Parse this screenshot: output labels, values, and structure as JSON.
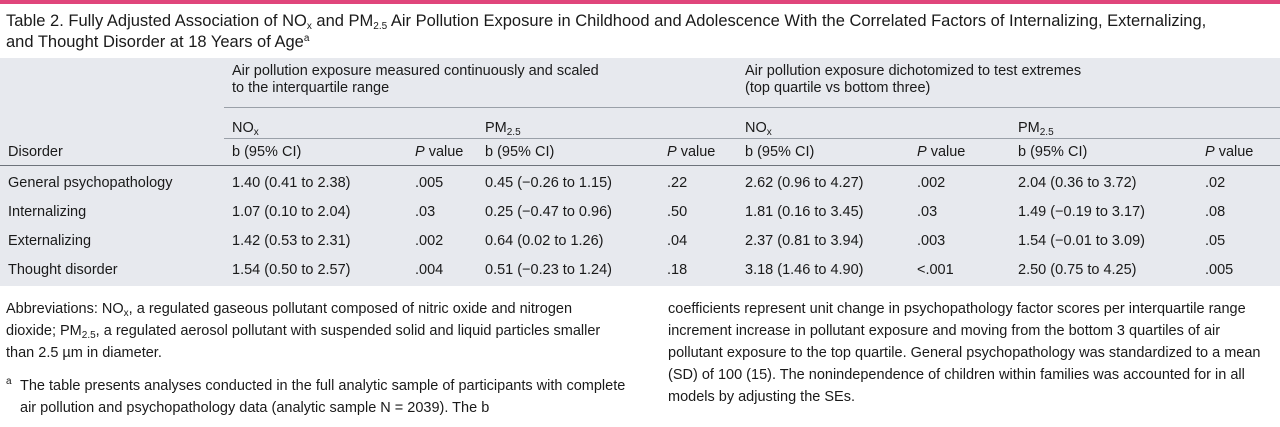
{
  "table": {
    "title_a": "Table 2. Fully Adjusted Association of NO",
    "title_sub_x": "x",
    "title_b": " and PM",
    "title_sub_25": "2.5",
    "title_c": " Air Pollution Exposure in Childhood and Adolescence With the Correlated Factors of Internalizing, Externalizing,",
    "title_d": "and Thought Disorder at 18 Years of Age",
    "title_sup": "a",
    "group_continuous_line1": "Air pollution exposure measured continuously and scaled",
    "group_continuous_line2": "to the interquartile range",
    "group_dichotomized_line1": "Air pollution exposure dichotomized to test extremes",
    "group_dichotomized_line2": "(top quartile vs bottom three)",
    "pollutant_no": "NO",
    "pollutant_no_sub": "x",
    "pollutant_pm": "PM",
    "pollutant_pm_sub": "2.5",
    "col_disorder": "Disorder",
    "col_b": "b (95% CI)",
    "col_p_italic": "P",
    "col_p_rest": " value",
    "rows": [
      {
        "disorder": "General psychopathology",
        "no_b": "1.40 (0.41 to 2.38)",
        "no_p": ".005",
        "pm_b": "0.45 (−0.26 to 1.15)",
        "pm_p": ".22",
        "dno_b": "2.62 (0.96 to 4.27)",
        "dno_p": ".002",
        "dpm_b": "2.04 (0.36 to 3.72)",
        "dpm_p": ".02"
      },
      {
        "disorder": "Internalizing",
        "no_b": "1.07 (0.10 to 2.04)",
        "no_p": ".03",
        "pm_b": "0.25 (−0.47 to 0.96)",
        "pm_p": ".50",
        "dno_b": "1.81 (0.16 to 3.45)",
        "dno_p": ".03",
        "dpm_b": "1.49 (−0.19 to 3.17)",
        "dpm_p": ".08"
      },
      {
        "disorder": "Externalizing",
        "no_b": "1.42 (0.53 to 2.31)",
        "no_p": ".002",
        "pm_b": "0.64 (0.02 to 1.26)",
        "pm_p": ".04",
        "dno_b": "2.37 (0.81 to 3.94)",
        "dno_p": ".003",
        "dpm_b": "1.54 (−0.01 to 3.09)",
        "dpm_p": ".05"
      },
      {
        "disorder": "Thought disorder",
        "no_b": "1.54 (0.50 to 2.57)",
        "no_p": ".004",
        "pm_b": "0.51 (−0.23 to 1.24)",
        "pm_p": ".18",
        "dno_b": "3.18 (1.46 to 4.90)",
        "dno_p": "<.001",
        "dpm_b": "2.50 (0.75 to 4.25)",
        "dpm_p": ".005"
      }
    ]
  },
  "notes": {
    "abbr_a": "Abbreviations: NO",
    "abbr_sub_x": "x",
    "abbr_b": ", a regulated gaseous pollutant composed of nitric oxide and nitrogen dioxide; PM",
    "abbr_sub_25": "2.5",
    "abbr_c": ", a regulated aerosol pollutant with suspended solid and liquid particles smaller than 2.5 µm in diameter.",
    "footnote_mark": "a",
    "footnote_text_col1": "The table presents analyses conducted in the full analytic sample of participants with complete air pollution and psychopathology data (analytic sample N = 2039). The b",
    "footnote_text_col2": "coefficients represent unit change in psychopathology factor scores per interquartile range increment increase in pollutant exposure and moving from the bottom 3 quartiles of air pollutant exposure to the top quartile. General psychopathology was standardized to a mean (SD) of 100 (15). The nonindependence of children within families was accounted for in all models by adjusting the SEs."
  },
  "colors": {
    "accent_bar": "#e0457b",
    "table_bg": "#e7e9ee"
  }
}
